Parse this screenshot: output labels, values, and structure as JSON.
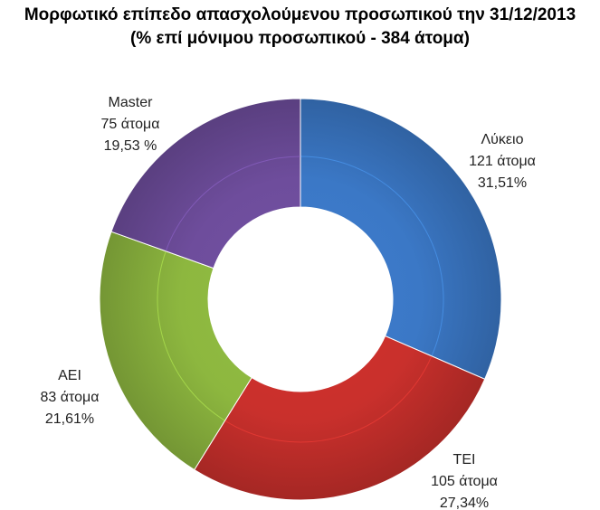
{
  "title_line1": "Μορφωτικό επίπεδο απασχολούμενου προσωπικού την 31/12/2013",
  "title_line2": "(% επί μόνιμου προσωπικού - 384 άτομα)",
  "chart_data": {
    "type": "pie",
    "variant": "doughnut",
    "title": "Μορφωτικό επίπεδο απασχολούμενου προσωπικού την 31/12/2013",
    "subtitle": "(% επί μόνιμου προσωπικού - 384 άτομα)",
    "legend": "none",
    "slices": [
      {
        "label": "Λύκειο",
        "count_label": "121 άτομα",
        "percent_label": "31,51%",
        "value": 121,
        "color": "#3B78C6"
      },
      {
        "label": "ΤΕΙ",
        "count_label": "105 άτομα",
        "percent_label": "27,34%",
        "value": 105,
        "color": "#C9302C"
      },
      {
        "label": "ΑΕΙ",
        "count_label": "83 άτομα",
        "percent_label": "21,61%",
        "value": 83,
        "color": "#8DB73F"
      },
      {
        "label": "Master",
        "count_label": "75 άτομα",
        "percent_label": "19,53 %",
        "value": 75,
        "color": "#6E4D9C"
      }
    ]
  }
}
